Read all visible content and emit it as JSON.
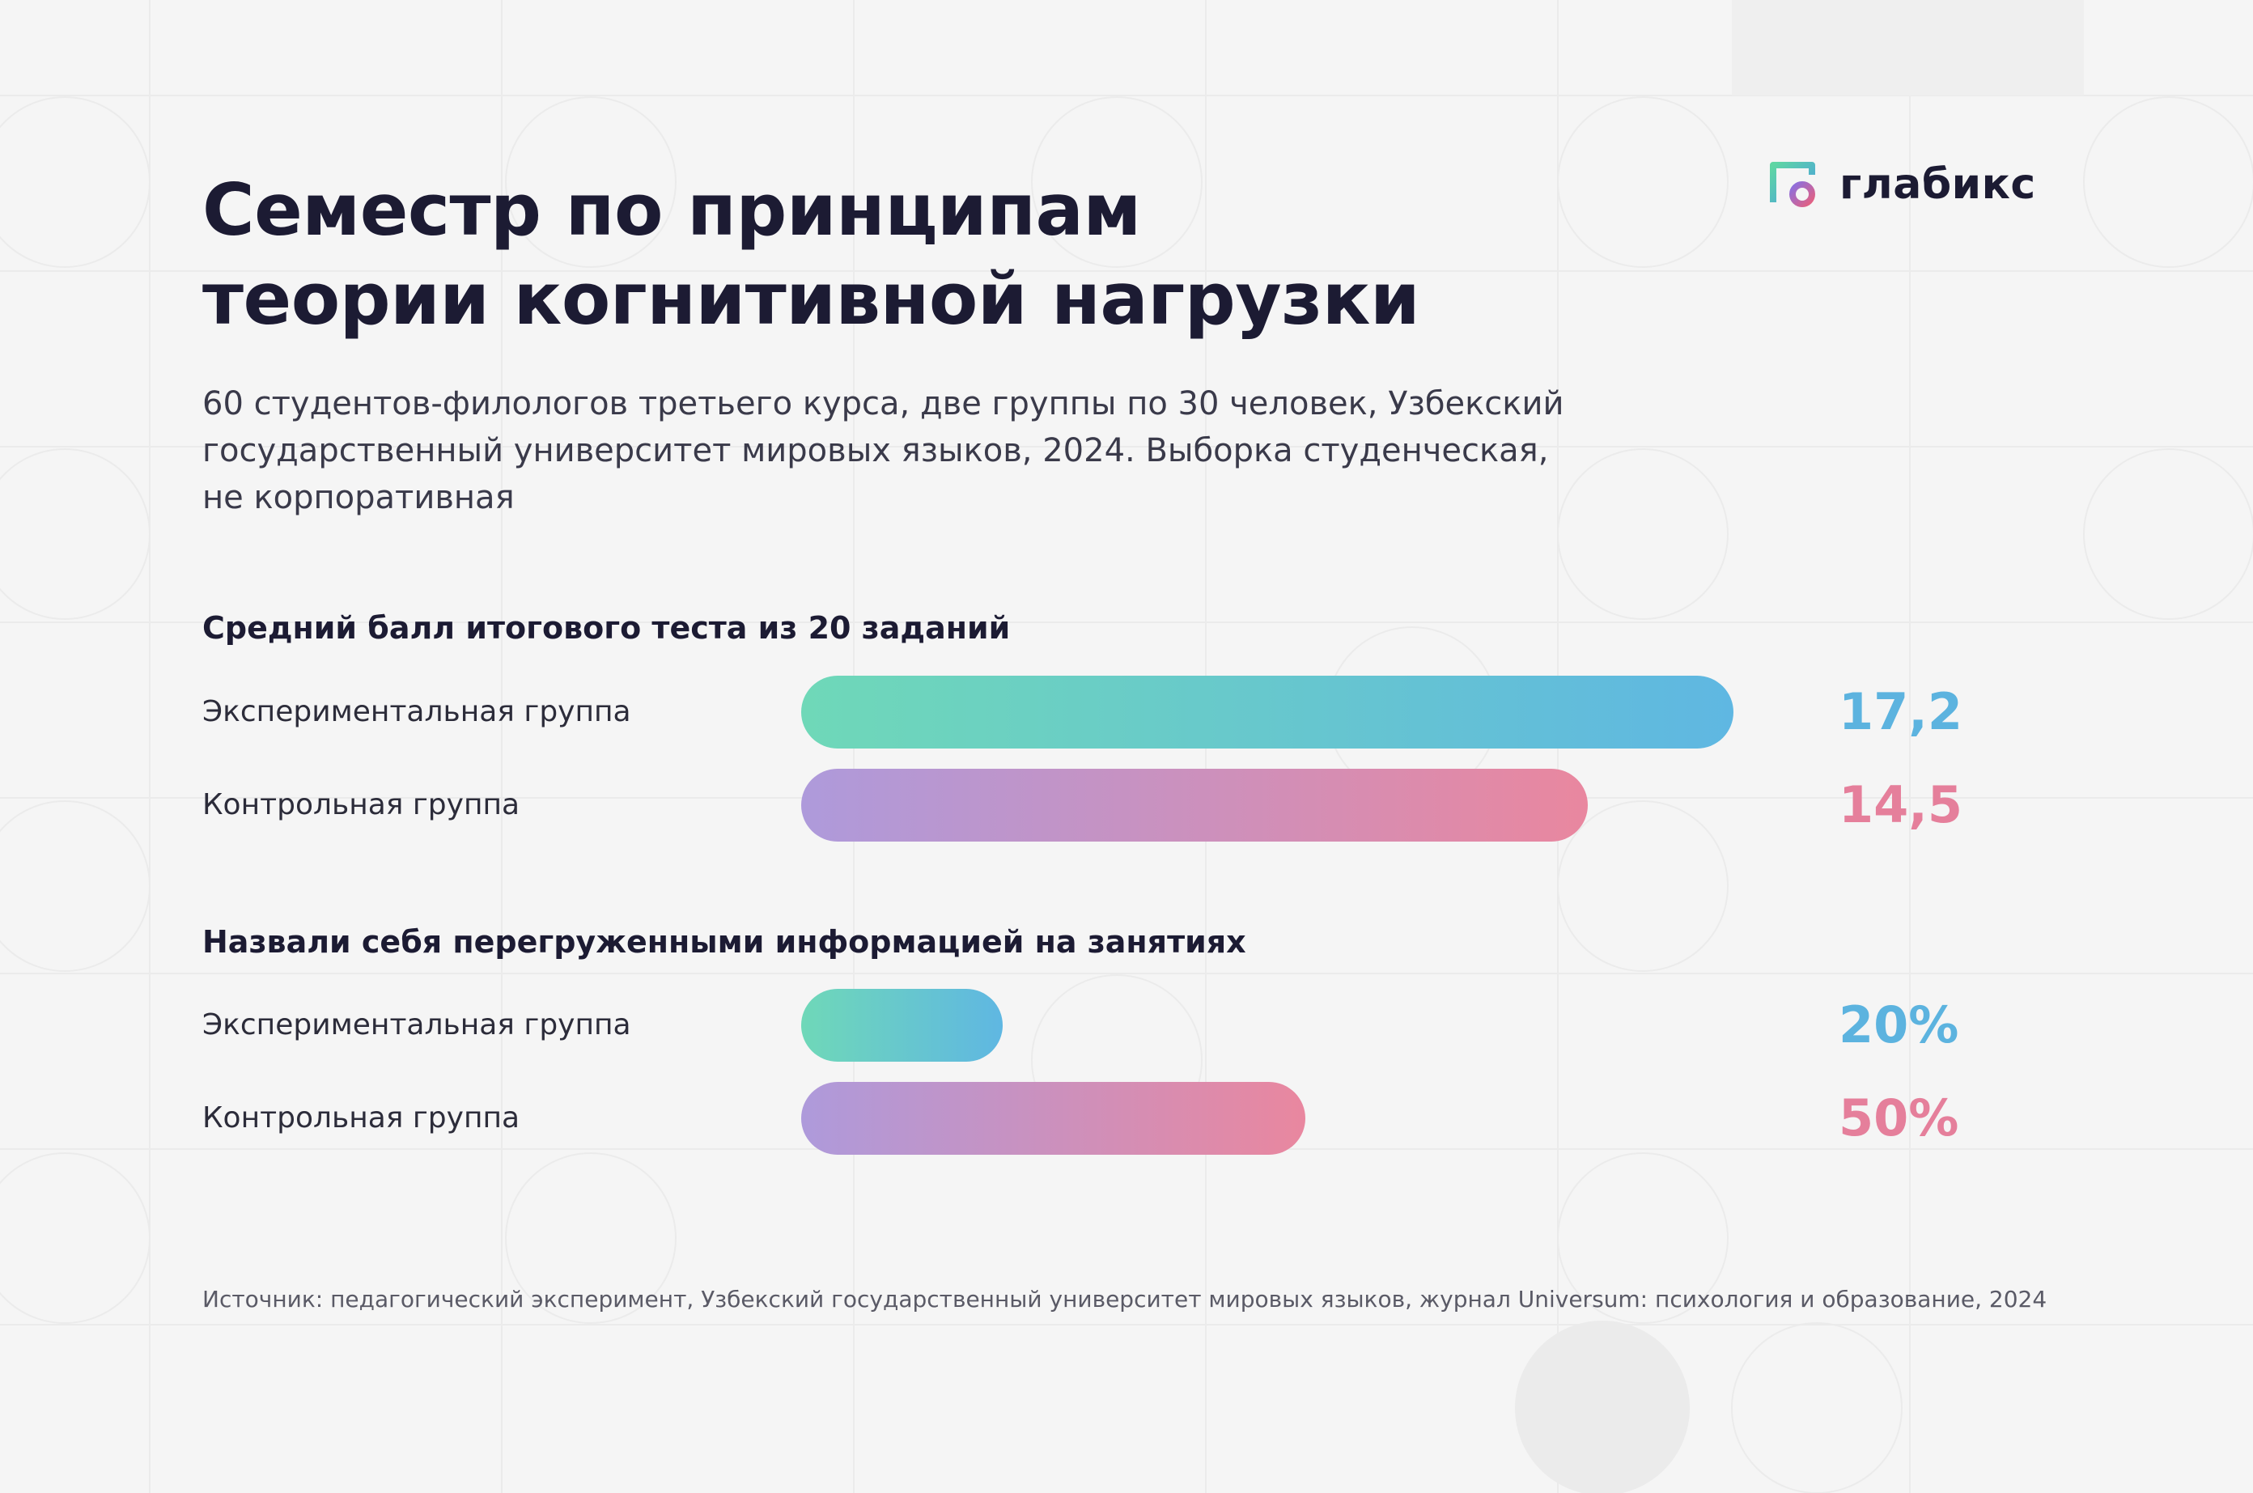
{
  "logo": {
    "name": "глабикс",
    "icon": "glabix-logo-icon"
  },
  "title_lines": [
    "Семестр по принципам",
    "теории когнитивной нагрузки"
  ],
  "subtitle_lines": [
    "60 студентов-филологов третьего курса, две группы по 30 человек, Узбекский",
    "государственный университет мировых языков, 2024. Выборка студенческая,",
    "не корпоративная"
  ],
  "colors": {
    "experimental_gradient": [
      "#6fd8b8",
      "#5fb7e2"
    ],
    "control_gradient": [
      "#ae9adb",
      "#e9879f"
    ],
    "experimental_value": "#5cb3df",
    "control_value": "#e57f9b",
    "background": "#f5f5f5",
    "text": "#1c1b33"
  },
  "chart_data": [
    {
      "type": "bar",
      "orientation": "horizontal",
      "title": "Средний балл итогового теста из 20 заданий",
      "categories": [
        "Экспериментальная группа",
        "Контрольная группа"
      ],
      "values": [
        17.2,
        14.5
      ],
      "value_labels": [
        "17,2",
        "14,5"
      ],
      "xlim": [
        0,
        20
      ]
    },
    {
      "type": "bar",
      "orientation": "horizontal",
      "title": "Назвали себя перегруженными информацией на занятиях",
      "categories": [
        "Экспериментальная группа",
        "Контрольная группа"
      ],
      "values": [
        20,
        50
      ],
      "value_labels": [
        "20%",
        "50%"
      ],
      "unit": "%"
    }
  ],
  "source": "Источник: педагогический эксперимент, Узбекский государственный университет мировых языков, журнал Universum: психология и образование, 2024"
}
